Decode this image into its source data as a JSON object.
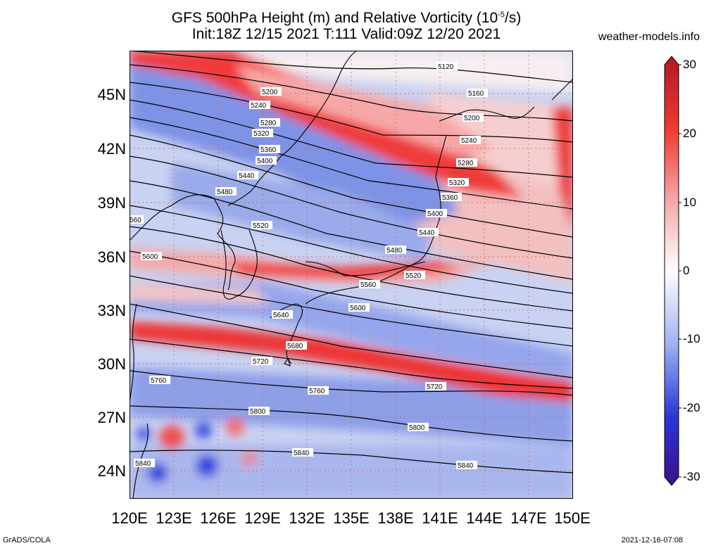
{
  "header": {
    "title_line1_prefix": "GFS 500hPa Height (m) and Relative Vorticity (10",
    "title_line1_sup": "-5",
    "title_line1_suffix": "/s)",
    "title_line2": "Init:18Z 12/15 2021 T:111 Valid:09Z 12/20 2021",
    "source": "weather-models.info"
  },
  "footer": {
    "left": "GrADS/COLA",
    "right": "2021-12-16-07:08"
  },
  "map": {
    "lat_labels": [
      "45N",
      "42N",
      "39N",
      "36N",
      "33N",
      "30N",
      "27N",
      "24N"
    ],
    "lon_labels": [
      "120E",
      "123E",
      "126E",
      "129E",
      "132E",
      "135E",
      "138E",
      "141E",
      "144E",
      "147E",
      "150E"
    ],
    "colorbar": {
      "ticks": [
        "30",
        "20",
        "10",
        "0",
        "-10",
        "-20",
        "-30"
      ],
      "colors": [
        "#b2182b",
        "#ef3b2c",
        "#f4a3a3",
        "#ffffff",
        "#9fb2f0",
        "#2b36d9",
        "#3b0f8c"
      ]
    },
    "contour_labels": [
      "5120",
      "5160",
      "5200",
      "5240",
      "5280",
      "5320",
      "5360",
      "5400",
      "5440",
      "5480",
      "5520",
      "5560",
      "5600",
      "5640",
      "5680",
      "5720",
      "5760",
      "5800",
      "5840"
    ],
    "edge_fragment": "560"
  }
}
